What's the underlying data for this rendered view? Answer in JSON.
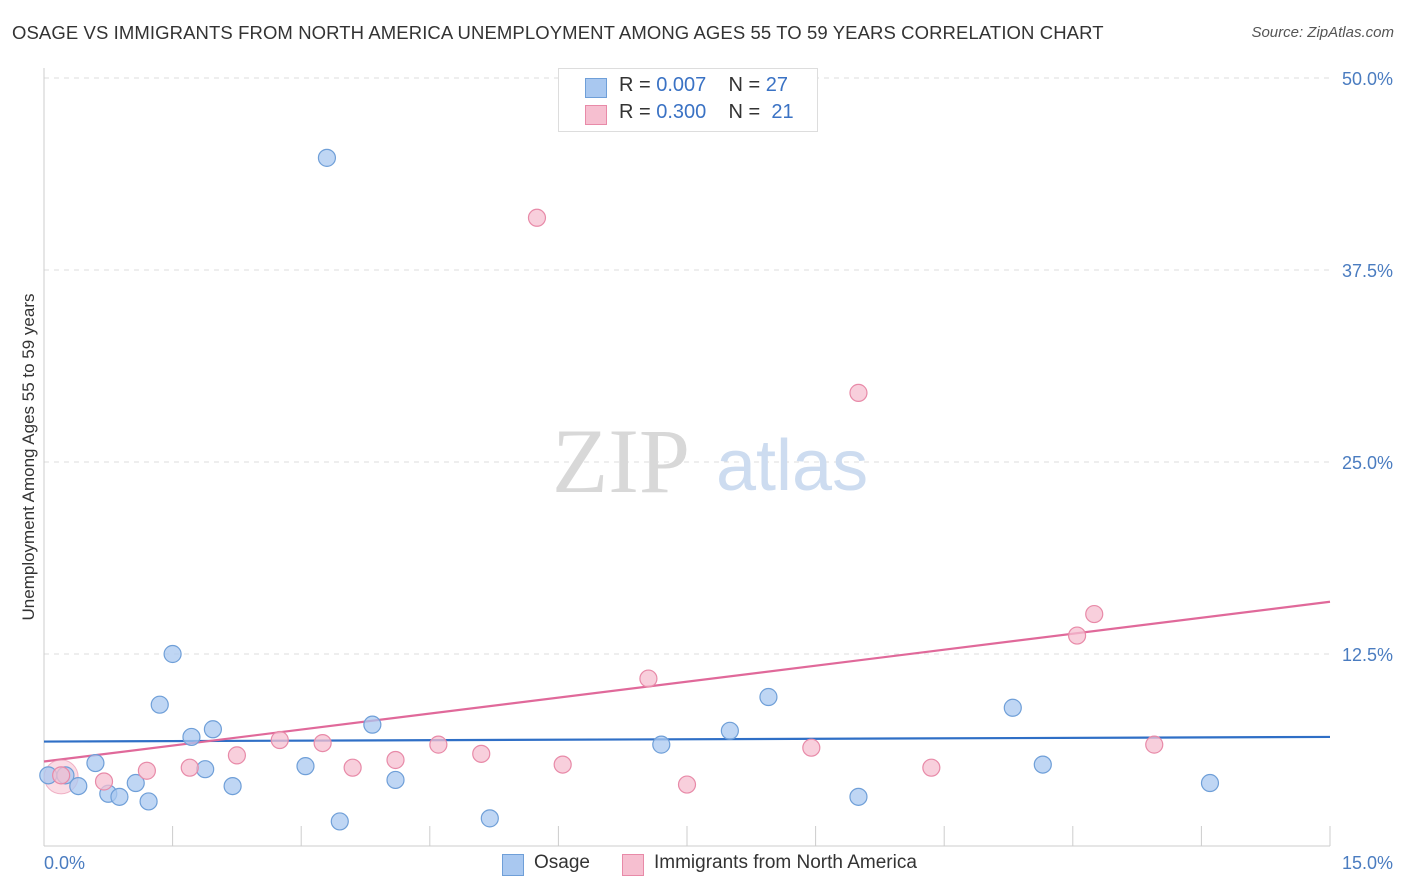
{
  "title": "OSAGE VS IMMIGRANTS FROM NORTH AMERICA UNEMPLOYMENT AMONG AGES 55 TO 59 YEARS CORRELATION CHART",
  "source": "Source: ZipAtlas.com",
  "watermark": {
    "zip": "ZIP",
    "atlas": "atlas"
  },
  "legend": {
    "rows": [
      {
        "r_label": "R = ",
        "r_value": "0.007",
        "n_label": "N = ",
        "n_value": "27"
      },
      {
        "r_label": "R = ",
        "r_value": "0.300",
        "n_label": "N = ",
        "n_value": "21"
      }
    ]
  },
  "colors": {
    "osage_fill": "#a9c8f0",
    "osage_stroke": "#6f9fd8",
    "osage_line": "#2f6fc6",
    "imm_fill": "#f6bfd0",
    "imm_stroke": "#e88aa8",
    "imm_line": "#e0699a",
    "grid": "#dddddd",
    "axis_text": "#4a7cc0"
  },
  "chart_data": {
    "type": "scatter",
    "title": "OSAGE VS IMMIGRANTS FROM NORTH AMERICA UNEMPLOYMENT AMONG AGES 55 TO 59 YEARS CORRELATION CHART",
    "xlabel": "",
    "ylabel": "Unemployment Among Ages 55 to 59 years",
    "xlim": [
      0,
      15
    ],
    "ylim": [
      0,
      50
    ],
    "x_tick_labels": [
      "0.0%",
      "15.0%"
    ],
    "y_ticks": [
      12.5,
      25.0,
      37.5,
      50.0
    ],
    "y_tick_labels": [
      "12.5%",
      "25.0%",
      "37.5%",
      "50.0%"
    ],
    "legend_position": "top-center",
    "series": [
      {
        "name": "Osage",
        "points": [
          [
            0.05,
            4.6
          ],
          [
            0.25,
            4.6
          ],
          [
            0.4,
            3.9
          ],
          [
            0.6,
            5.4
          ],
          [
            0.75,
            3.4
          ],
          [
            0.88,
            3.2
          ],
          [
            1.07,
            4.1
          ],
          [
            1.22,
            2.9
          ],
          [
            1.35,
            9.2
          ],
          [
            1.5,
            12.5
          ],
          [
            1.72,
            7.1
          ],
          [
            1.88,
            5.0
          ],
          [
            1.97,
            7.6
          ],
          [
            2.2,
            3.9
          ],
          [
            3.05,
            5.2
          ],
          [
            3.3,
            44.8
          ],
          [
            3.45,
            1.6
          ],
          [
            3.83,
            7.9
          ],
          [
            4.1,
            4.3
          ],
          [
            5.2,
            1.8
          ],
          [
            7.2,
            6.6
          ],
          [
            8.0,
            7.5
          ],
          [
            8.45,
            9.7
          ],
          [
            9.5,
            3.2
          ],
          [
            11.3,
            9.0
          ],
          [
            11.65,
            5.3
          ],
          [
            13.6,
            4.1
          ]
        ],
        "trend": {
          "x": [
            0,
            15
          ],
          "y": [
            6.8,
            7.1
          ]
        }
      },
      {
        "name": "Immigrants from North America",
        "points": [
          [
            0.2,
            4.6
          ],
          [
            0.7,
            4.2
          ],
          [
            1.2,
            4.9
          ],
          [
            1.7,
            5.1
          ],
          [
            2.25,
            5.9
          ],
          [
            2.75,
            6.9
          ],
          [
            3.25,
            6.7
          ],
          [
            3.6,
            5.1
          ],
          [
            4.1,
            5.6
          ],
          [
            4.6,
            6.6
          ],
          [
            5.1,
            6.0
          ],
          [
            5.75,
            40.9
          ],
          [
            6.05,
            5.3
          ],
          [
            7.05,
            10.9
          ],
          [
            7.5,
            4.0
          ],
          [
            8.95,
            6.4
          ],
          [
            9.5,
            29.5
          ],
          [
            10.35,
            5.1
          ],
          [
            12.05,
            13.7
          ],
          [
            12.25,
            15.1
          ],
          [
            12.95,
            6.6
          ]
        ],
        "trend": {
          "x": [
            0,
            15
          ],
          "y": [
            5.5,
            15.9
          ]
        }
      }
    ]
  },
  "bottom_legend": {
    "osage": "Osage",
    "immigrants": "Immigrants from North America"
  }
}
